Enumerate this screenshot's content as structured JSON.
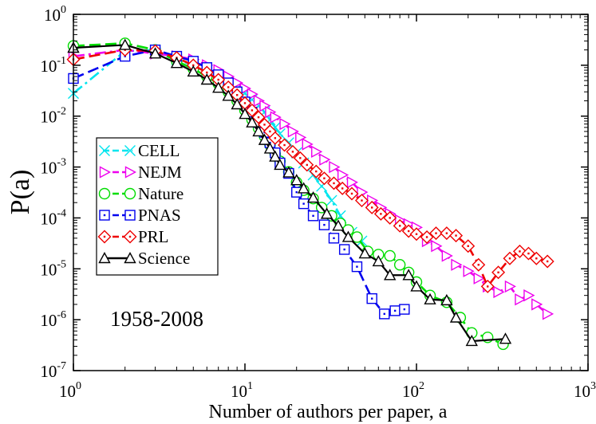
{
  "chart_data": {
    "type": "line",
    "title": "",
    "xlabel": "Number of authors per paper, a",
    "ylabel": "P(a)",
    "xscale": "log",
    "yscale": "log",
    "xlim": [
      1,
      1000
    ],
    "ylim": [
      1e-07,
      1
    ],
    "annotation": "1958-2008",
    "legend_position": "center-left",
    "x_ticks": [
      {
        "value": 1,
        "base": "10",
        "exp": "0"
      },
      {
        "value": 10,
        "base": "10",
        "exp": "1"
      },
      {
        "value": 100,
        "base": "10",
        "exp": "2"
      },
      {
        "value": 1000,
        "base": "10",
        "exp": "3"
      }
    ],
    "y_ticks": [
      {
        "value": 1e-07,
        "base": "10",
        "exp": "-7"
      },
      {
        "value": 1e-06,
        "base": "10",
        "exp": "-6"
      },
      {
        "value": 1e-05,
        "base": "10",
        "exp": "-5"
      },
      {
        "value": 0.0001,
        "base": "10",
        "exp": "-4"
      },
      {
        "value": 0.001,
        "base": "10",
        "exp": "-3"
      },
      {
        "value": 0.01,
        "base": "10",
        "exp": "-2"
      },
      {
        "value": 0.1,
        "base": "10",
        "exp": "-1"
      },
      {
        "value": 1,
        "base": "10",
        "exp": "0"
      }
    ],
    "series": [
      {
        "name": "CELL",
        "color": "#00e5ee",
        "marker": "x",
        "dash": "dashdot",
        "points": [
          [
            1,
            0.028
          ],
          [
            2,
            0.19
          ],
          [
            3,
            0.2
          ],
          [
            4,
            0.13
          ],
          [
            5,
            0.1
          ],
          [
            6,
            0.072
          ],
          [
            7,
            0.055
          ],
          [
            8,
            0.043
          ],
          [
            9,
            0.035
          ],
          [
            10,
            0.028
          ],
          [
            11,
            0.021
          ],
          [
            12,
            0.016
          ],
          [
            13,
            0.012
          ],
          [
            14,
            0.0085
          ],
          [
            15,
            0.006
          ],
          [
            16,
            0.0045
          ],
          [
            18,
            0.003
          ],
          [
            20,
            0.0019
          ],
          [
            22,
            0.0012
          ],
          [
            25,
            0.0007
          ],
          [
            28,
            0.00042
          ],
          [
            32,
            0.00022
          ],
          [
            36,
            0.00011
          ],
          [
            42,
            5.2e-05
          ],
          [
            48,
            3.5e-05
          ]
        ]
      },
      {
        "name": "NEJM",
        "color": "#ee00ee",
        "marker": "triangle-right",
        "dash": "dashdot",
        "points": [
          [
            1,
            0.15
          ],
          [
            2,
            0.2
          ],
          [
            3,
            0.17
          ],
          [
            4,
            0.15
          ],
          [
            5,
            0.13
          ],
          [
            6,
            0.1
          ],
          [
            7,
            0.08
          ],
          [
            8,
            0.06
          ],
          [
            9,
            0.045
          ],
          [
            10,
            0.035
          ],
          [
            11,
            0.027
          ],
          [
            12,
            0.02
          ],
          [
            13,
            0.016
          ],
          [
            14,
            0.012
          ],
          [
            15,
            0.0095
          ],
          [
            17,
            0.007
          ],
          [
            19,
            0.005
          ],
          [
            21,
            0.0038
          ],
          [
            23,
            0.0028
          ],
          [
            26,
            0.002
          ],
          [
            29,
            0.0014
          ],
          [
            33,
            0.001
          ],
          [
            37,
            0.0007
          ],
          [
            42,
            0.0005
          ],
          [
            48,
            0.00032
          ],
          [
            55,
            0.00022
          ],
          [
            62,
            0.00016
          ],
          [
            70,
            0.00012
          ],
          [
            80,
            9e-05
          ],
          [
            90,
            7.5e-05
          ],
          [
            100,
            6.5e-05
          ],
          [
            115,
            3.5e-05
          ],
          [
            130,
            2.8e-05
          ],
          [
            150,
            1.8e-05
          ],
          [
            170,
            1.2e-05
          ],
          [
            200,
            9e-06
          ],
          [
            230,
            6.5e-06
          ],
          [
            260,
            4.5e-06
          ],
          [
            300,
            3.5e-06
          ],
          [
            350,
            4.5e-06
          ],
          [
            400,
            2.5e-06
          ],
          [
            450,
            3e-06
          ],
          [
            500,
            2e-06
          ],
          [
            580,
            1.3e-06
          ]
        ]
      },
      {
        "name": "Nature",
        "color": "#00dd00",
        "marker": "circle",
        "dash": "dashed",
        "points": [
          [
            1,
            0.24
          ],
          [
            2,
            0.27
          ],
          [
            3,
            0.2
          ],
          [
            4,
            0.12
          ],
          [
            5,
            0.085
          ],
          [
            6,
            0.06
          ],
          [
            7,
            0.043
          ],
          [
            8,
            0.03
          ],
          [
            9,
            0.02
          ],
          [
            10,
            0.013
          ],
          [
            11,
            0.0085
          ],
          [
            12,
            0.0058
          ],
          [
            13,
            0.004
          ],
          [
            14,
            0.0027
          ],
          [
            15,
            0.0018
          ],
          [
            16,
            0.0013
          ],
          [
            18,
            0.0008
          ],
          [
            20,
            0.0005
          ],
          [
            22,
            0.00035
          ],
          [
            25,
            0.00024
          ],
          [
            28,
            0.00016
          ],
          [
            32,
            0.00011
          ],
          [
            36,
            7.8e-05
          ],
          [
            40,
            5.8e-05
          ],
          [
            45,
            4.2e-05
          ],
          [
            52,
            2.2e-05
          ],
          [
            60,
            1.9e-05
          ],
          [
            70,
            1.8e-05
          ],
          [
            80,
            1.2e-05
          ],
          [
            90,
            8.5e-06
          ],
          [
            100,
            5.5e-06
          ],
          [
            120,
            3e-06
          ],
          [
            150,
            2.2e-06
          ],
          [
            180,
            1.1e-06
          ],
          [
            210,
            5.5e-07
          ],
          [
            260,
            4.5e-07
          ],
          [
            320,
            3.3e-07
          ]
        ]
      },
      {
        "name": "PNAS",
        "color": "#0000ee",
        "marker": "square",
        "dash": "dashed",
        "points": [
          [
            1,
            0.055
          ],
          [
            2,
            0.15
          ],
          [
            3,
            0.2
          ],
          [
            4,
            0.15
          ],
          [
            5,
            0.12
          ],
          [
            6,
            0.09
          ],
          [
            7,
            0.065
          ],
          [
            8,
            0.045
          ],
          [
            9,
            0.03
          ],
          [
            10,
            0.019
          ],
          [
            11,
            0.012
          ],
          [
            12,
            0.0075
          ],
          [
            13,
            0.0048
          ],
          [
            14,
            0.003
          ],
          [
            15,
            0.0019
          ],
          [
            16,
            0.0012
          ],
          [
            18,
            0.00075
          ],
          [
            20,
            0.00032
          ],
          [
            22,
            0.00019
          ],
          [
            25,
            0.00011
          ],
          [
            29,
            7.3e-05
          ],
          [
            33,
            4e-05
          ],
          [
            38,
            2.4e-05
          ],
          [
            45,
            1.1e-05
          ],
          [
            55,
            2.6e-06
          ],
          [
            65,
            1.3e-06
          ],
          [
            75,
            1.5e-06
          ],
          [
            85,
            1.6e-06
          ]
        ]
      },
      {
        "name": "PRL",
        "color": "#ee0000",
        "marker": "diamond",
        "dash": "dashed",
        "points": [
          [
            1,
            0.13
          ],
          [
            2,
            0.2
          ],
          [
            3,
            0.19
          ],
          [
            4,
            0.14
          ],
          [
            5,
            0.1
          ],
          [
            6,
            0.072
          ],
          [
            7,
            0.052
          ],
          [
            8,
            0.037
          ],
          [
            9,
            0.026
          ],
          [
            10,
            0.018
          ],
          [
            11,
            0.013
          ],
          [
            12,
            0.0095
          ],
          [
            13,
            0.0068
          ],
          [
            14,
            0.005
          ],
          [
            15,
            0.0037
          ],
          [
            17,
            0.0027
          ],
          [
            19,
            0.002
          ],
          [
            21,
            0.0015
          ],
          [
            23,
            0.0011
          ],
          [
            26,
            0.00082
          ],
          [
            29,
            0.0006
          ],
          [
            33,
            0.00048
          ],
          [
            37,
            0.00038
          ],
          [
            42,
            0.0003
          ],
          [
            48,
            0.00022
          ],
          [
            55,
            0.00016
          ],
          [
            62,
            0.00012
          ],
          [
            70,
            0.0001
          ],
          [
            80,
            7e-05
          ],
          [
            90,
            5.5e-05
          ],
          [
            100,
            4.8e-05
          ],
          [
            115,
            4.2e-05
          ],
          [
            130,
            5e-05
          ],
          [
            150,
            5e-05
          ],
          [
            170,
            4.5e-05
          ],
          [
            200,
            2.8e-05
          ],
          [
            230,
            1.2e-05
          ],
          [
            260,
            4.5e-06
          ],
          [
            300,
            8.5e-06
          ],
          [
            350,
            1.6e-05
          ],
          [
            400,
            2.2e-05
          ],
          [
            450,
            2e-05
          ],
          [
            500,
            1.6e-05
          ],
          [
            580,
            1.4e-05
          ]
        ]
      },
      {
        "name": "Science",
        "color": "#000000",
        "marker": "triangle-up",
        "dash": "solid",
        "points": [
          [
            1,
            0.22
          ],
          [
            2,
            0.25
          ],
          [
            3,
            0.17
          ],
          [
            4,
            0.11
          ],
          [
            5,
            0.075
          ],
          [
            6,
            0.052
          ],
          [
            7,
            0.036
          ],
          [
            8,
            0.025
          ],
          [
            9,
            0.017
          ],
          [
            10,
            0.011
          ],
          [
            11,
            0.0075
          ],
          [
            12,
            0.005
          ],
          [
            13,
            0.0034
          ],
          [
            14,
            0.0023
          ],
          [
            15,
            0.0016
          ],
          [
            16,
            0.0011
          ],
          [
            18,
            0.00078
          ],
          [
            20,
            0.00055
          ],
          [
            22,
            0.00038
          ],
          [
            25,
            0.00025
          ],
          [
            30,
            0.00012
          ],
          [
            35,
            7e-05
          ],
          [
            40,
            4.2e-05
          ],
          [
            50,
            2e-05
          ],
          [
            60,
            1.4e-05
          ],
          [
            70,
            7.5e-06
          ],
          [
            90,
            7.5e-06
          ],
          [
            100,
            4.5e-06
          ],
          [
            120,
            2.5e-06
          ],
          [
            150,
            2.4e-06
          ],
          [
            170,
            1.1e-06
          ],
          [
            210,
            3.8e-07
          ],
          [
            330,
            4.2e-07
          ]
        ]
      }
    ]
  }
}
